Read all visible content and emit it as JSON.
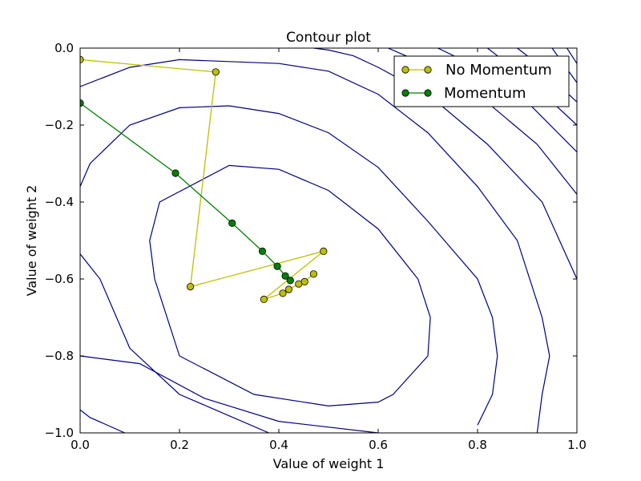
{
  "chart_data": {
    "type": "line",
    "title": "Contour plot",
    "xlabel": "Value of weight 1",
    "ylabel": "Value of weight 2",
    "xlim": [
      0.0,
      1.0
    ],
    "ylim": [
      -1.0,
      0.0
    ],
    "x_ticks": [
      0.0,
      0.2,
      0.4,
      0.6,
      0.8,
      1.0
    ],
    "y_ticks": [
      0.0,
      -0.2,
      -0.4,
      -0.6,
      -0.8,
      -1.0
    ],
    "x_tick_labels": [
      "0.0",
      "0.2",
      "0.4",
      "0.6",
      "0.8",
      "1.0"
    ],
    "y_tick_labels": [
      "0.0",
      "−0.2",
      "−0.4",
      "−0.6",
      "−0.8",
      "−1.0"
    ],
    "grid": false,
    "legend_position": "top-right",
    "contour_color": "#000080",
    "contours": [
      [
        [
          0.38,
          -1.0
        ],
        [
          0.2,
          -0.9
        ],
        [
          0.1,
          -0.78
        ],
        [
          0.04,
          -0.6
        ],
        [
          0.0,
          -0.535
        ]
      ],
      [
        [
          0.09,
          -1.0
        ],
        [
          0.02,
          -0.96
        ],
        [
          0.0,
          -0.94
        ]
      ],
      [
        [
          0.6,
          -1.0
        ],
        [
          0.4,
          -0.97
        ],
        [
          0.25,
          -0.91
        ],
        [
          0.12,
          -0.82
        ],
        [
          0.0,
          -0.8
        ]
      ],
      [
        [
          0.5,
          -0.93
        ],
        [
          0.35,
          -0.9
        ],
        [
          0.2,
          -0.8
        ],
        [
          0.15,
          -0.6
        ],
        [
          0.14,
          -0.5
        ],
        [
          0.16,
          -0.4
        ],
        [
          0.3,
          -0.305
        ],
        [
          0.4,
          -0.315
        ],
        [
          0.5,
          -0.37
        ],
        [
          0.6,
          -0.47
        ],
        [
          0.68,
          -0.6
        ],
        [
          0.705,
          -0.7
        ],
        [
          0.7,
          -0.8
        ],
        [
          0.63,
          -0.9
        ],
        [
          0.6,
          -0.92
        ],
        [
          0.5,
          -0.93
        ]
      ],
      [
        [
          0.8,
          -0.98
        ],
        [
          0.83,
          -0.9
        ],
        [
          0.84,
          -0.8
        ],
        [
          0.83,
          -0.7
        ],
        [
          0.8,
          -0.6
        ],
        [
          0.7,
          -0.45
        ],
        [
          0.6,
          -0.31
        ],
        [
          0.5,
          -0.22
        ],
        [
          0.4,
          -0.17
        ],
        [
          0.3,
          -0.15
        ],
        [
          0.2,
          -0.155
        ],
        [
          0.1,
          -0.2
        ],
        [
          0.02,
          -0.3
        ],
        [
          0.0,
          -0.36
        ]
      ],
      [
        [
          0.92,
          -1.0
        ],
        [
          0.93,
          -0.9
        ],
        [
          0.945,
          -0.8
        ],
        [
          0.93,
          -0.7
        ],
        [
          0.88,
          -0.5
        ],
        [
          0.8,
          -0.36
        ],
        [
          0.7,
          -0.22
        ],
        [
          0.6,
          -0.12
        ],
        [
          0.5,
          -0.06
        ],
        [
          0.4,
          -0.04
        ],
        [
          0.3,
          -0.035
        ],
        [
          0.2,
          -0.03
        ],
        [
          0.1,
          -0.05
        ],
        [
          0.0,
          -0.1
        ]
      ],
      [
        [
          1.0,
          -0.6
        ],
        [
          0.93,
          -0.4
        ],
        [
          0.82,
          -0.25
        ],
        [
          0.7,
          -0.12
        ],
        [
          0.6,
          -0.05
        ],
        [
          0.55,
          -0.02
        ],
        [
          0.5,
          -0.005
        ],
        [
          0.47,
          0.0
        ]
      ],
      [
        [
          1.0,
          -0.38
        ],
        [
          0.92,
          -0.25
        ],
        [
          0.8,
          -0.12
        ],
        [
          0.7,
          -0.045
        ],
        [
          0.62,
          0.0
        ]
      ],
      [
        [
          1.0,
          -0.27
        ],
        [
          0.9,
          -0.14
        ],
        [
          0.8,
          -0.05
        ],
        [
          0.72,
          0.0
        ]
      ],
      [
        [
          1.0,
          -0.2
        ],
        [
          0.9,
          -0.08
        ],
        [
          0.82,
          0.0
        ]
      ],
      [
        [
          1.0,
          -0.14
        ],
        [
          0.9,
          -0.02
        ],
        [
          0.88,
          0.0
        ]
      ],
      [
        [
          1.0,
          -0.09
        ],
        [
          0.95,
          0.0
        ]
      ],
      [
        [
          1.0,
          -0.04
        ],
        [
          0.98,
          0.0
        ]
      ]
    ],
    "series": [
      {
        "name": "No Momentum",
        "color": "#bfbf00",
        "points": [
          [
            0.0,
            -0.03
          ],
          [
            0.273,
            -0.062
          ],
          [
            0.222,
            -0.62
          ],
          [
            0.49,
            -0.528
          ],
          [
            0.37,
            -0.653
          ],
          [
            0.408,
            -0.637
          ],
          [
            0.42,
            -0.627
          ],
          [
            0.44,
            -0.613
          ],
          [
            0.452,
            -0.607
          ],
          [
            0.47,
            -0.587
          ]
        ]
      },
      {
        "name": "Momentum",
        "color": "#008000",
        "points": [
          [
            0.0,
            -0.143
          ],
          [
            0.192,
            -0.325
          ],
          [
            0.306,
            -0.455
          ],
          [
            0.367,
            -0.528
          ],
          [
            0.397,
            -0.567
          ],
          [
            0.413,
            -0.592
          ],
          [
            0.423,
            -0.604
          ]
        ]
      }
    ]
  }
}
